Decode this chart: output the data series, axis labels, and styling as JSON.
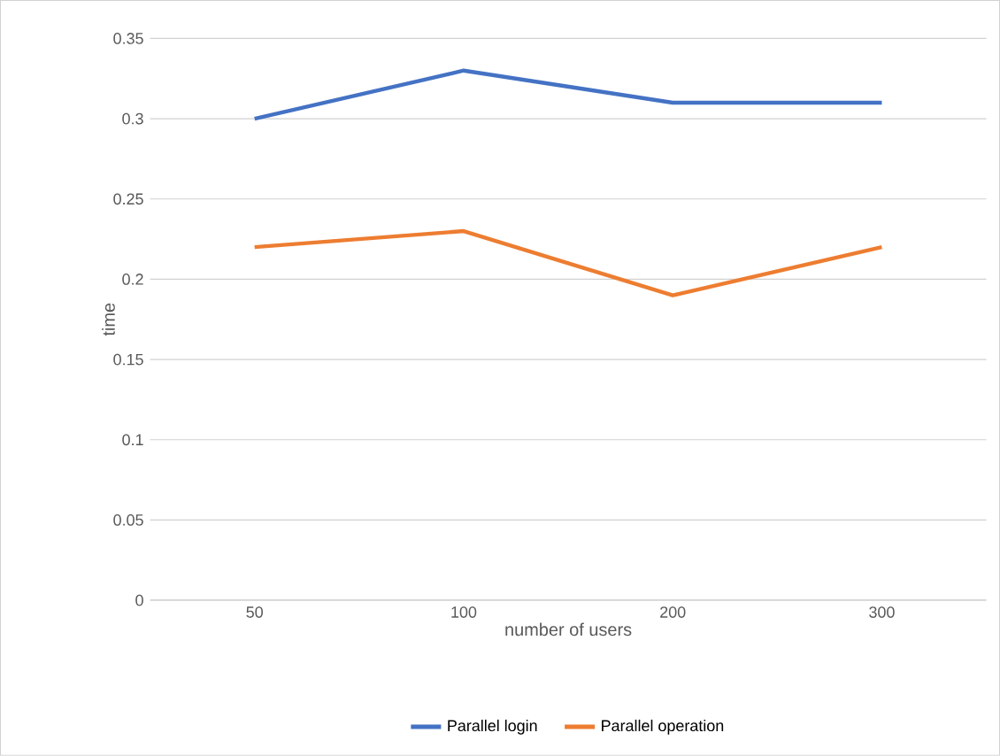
{
  "chart_data": {
    "type": "line",
    "xlabel": "number of users",
    "ylabel": "time",
    "categories": [
      "50",
      "100",
      "200",
      "300"
    ],
    "series": [
      {
        "name": "Parallel login",
        "color": "#4472c4",
        "values": [
          0.3,
          0.33,
          0.31,
          0.31
        ]
      },
      {
        "name": "Parallel operation",
        "color": "#ed7d31",
        "values": [
          0.22,
          0.23,
          0.19,
          0.22
        ]
      }
    ],
    "ylim": [
      0,
      0.35
    ],
    "yticks": [
      0,
      0.05,
      0.1,
      0.15,
      0.2,
      0.25,
      0.3,
      0.35
    ],
    "grid": "y",
    "legend": "bottom"
  }
}
